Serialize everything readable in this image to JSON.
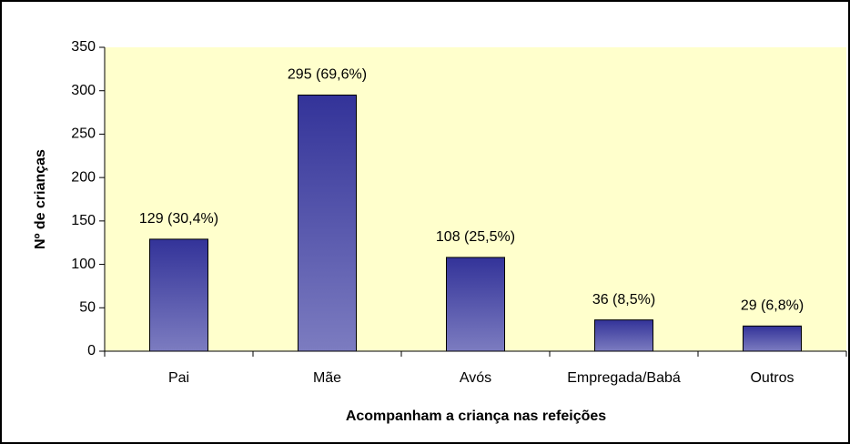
{
  "chart_data": {
    "type": "bar",
    "x_label": "Acompanham a criança nas refeições",
    "y_label": "Nº de crianças",
    "categories": [
      "Pai",
      "Mãe",
      "Avós",
      "Empregada/Babá",
      "Outros"
    ],
    "values": [
      129,
      295,
      108,
      36,
      29
    ],
    "value_labels": [
      "129 (30,4%)",
      "295 (69,6%)",
      "108 (25,5%)",
      "36 (8,5%)",
      "29 (6,8%)"
    ],
    "color": "#333399",
    "ylim": [
      0,
      350
    ],
    "yticks": [
      0,
      50,
      100,
      150,
      200,
      250,
      300,
      350
    ],
    "grid": false
  }
}
